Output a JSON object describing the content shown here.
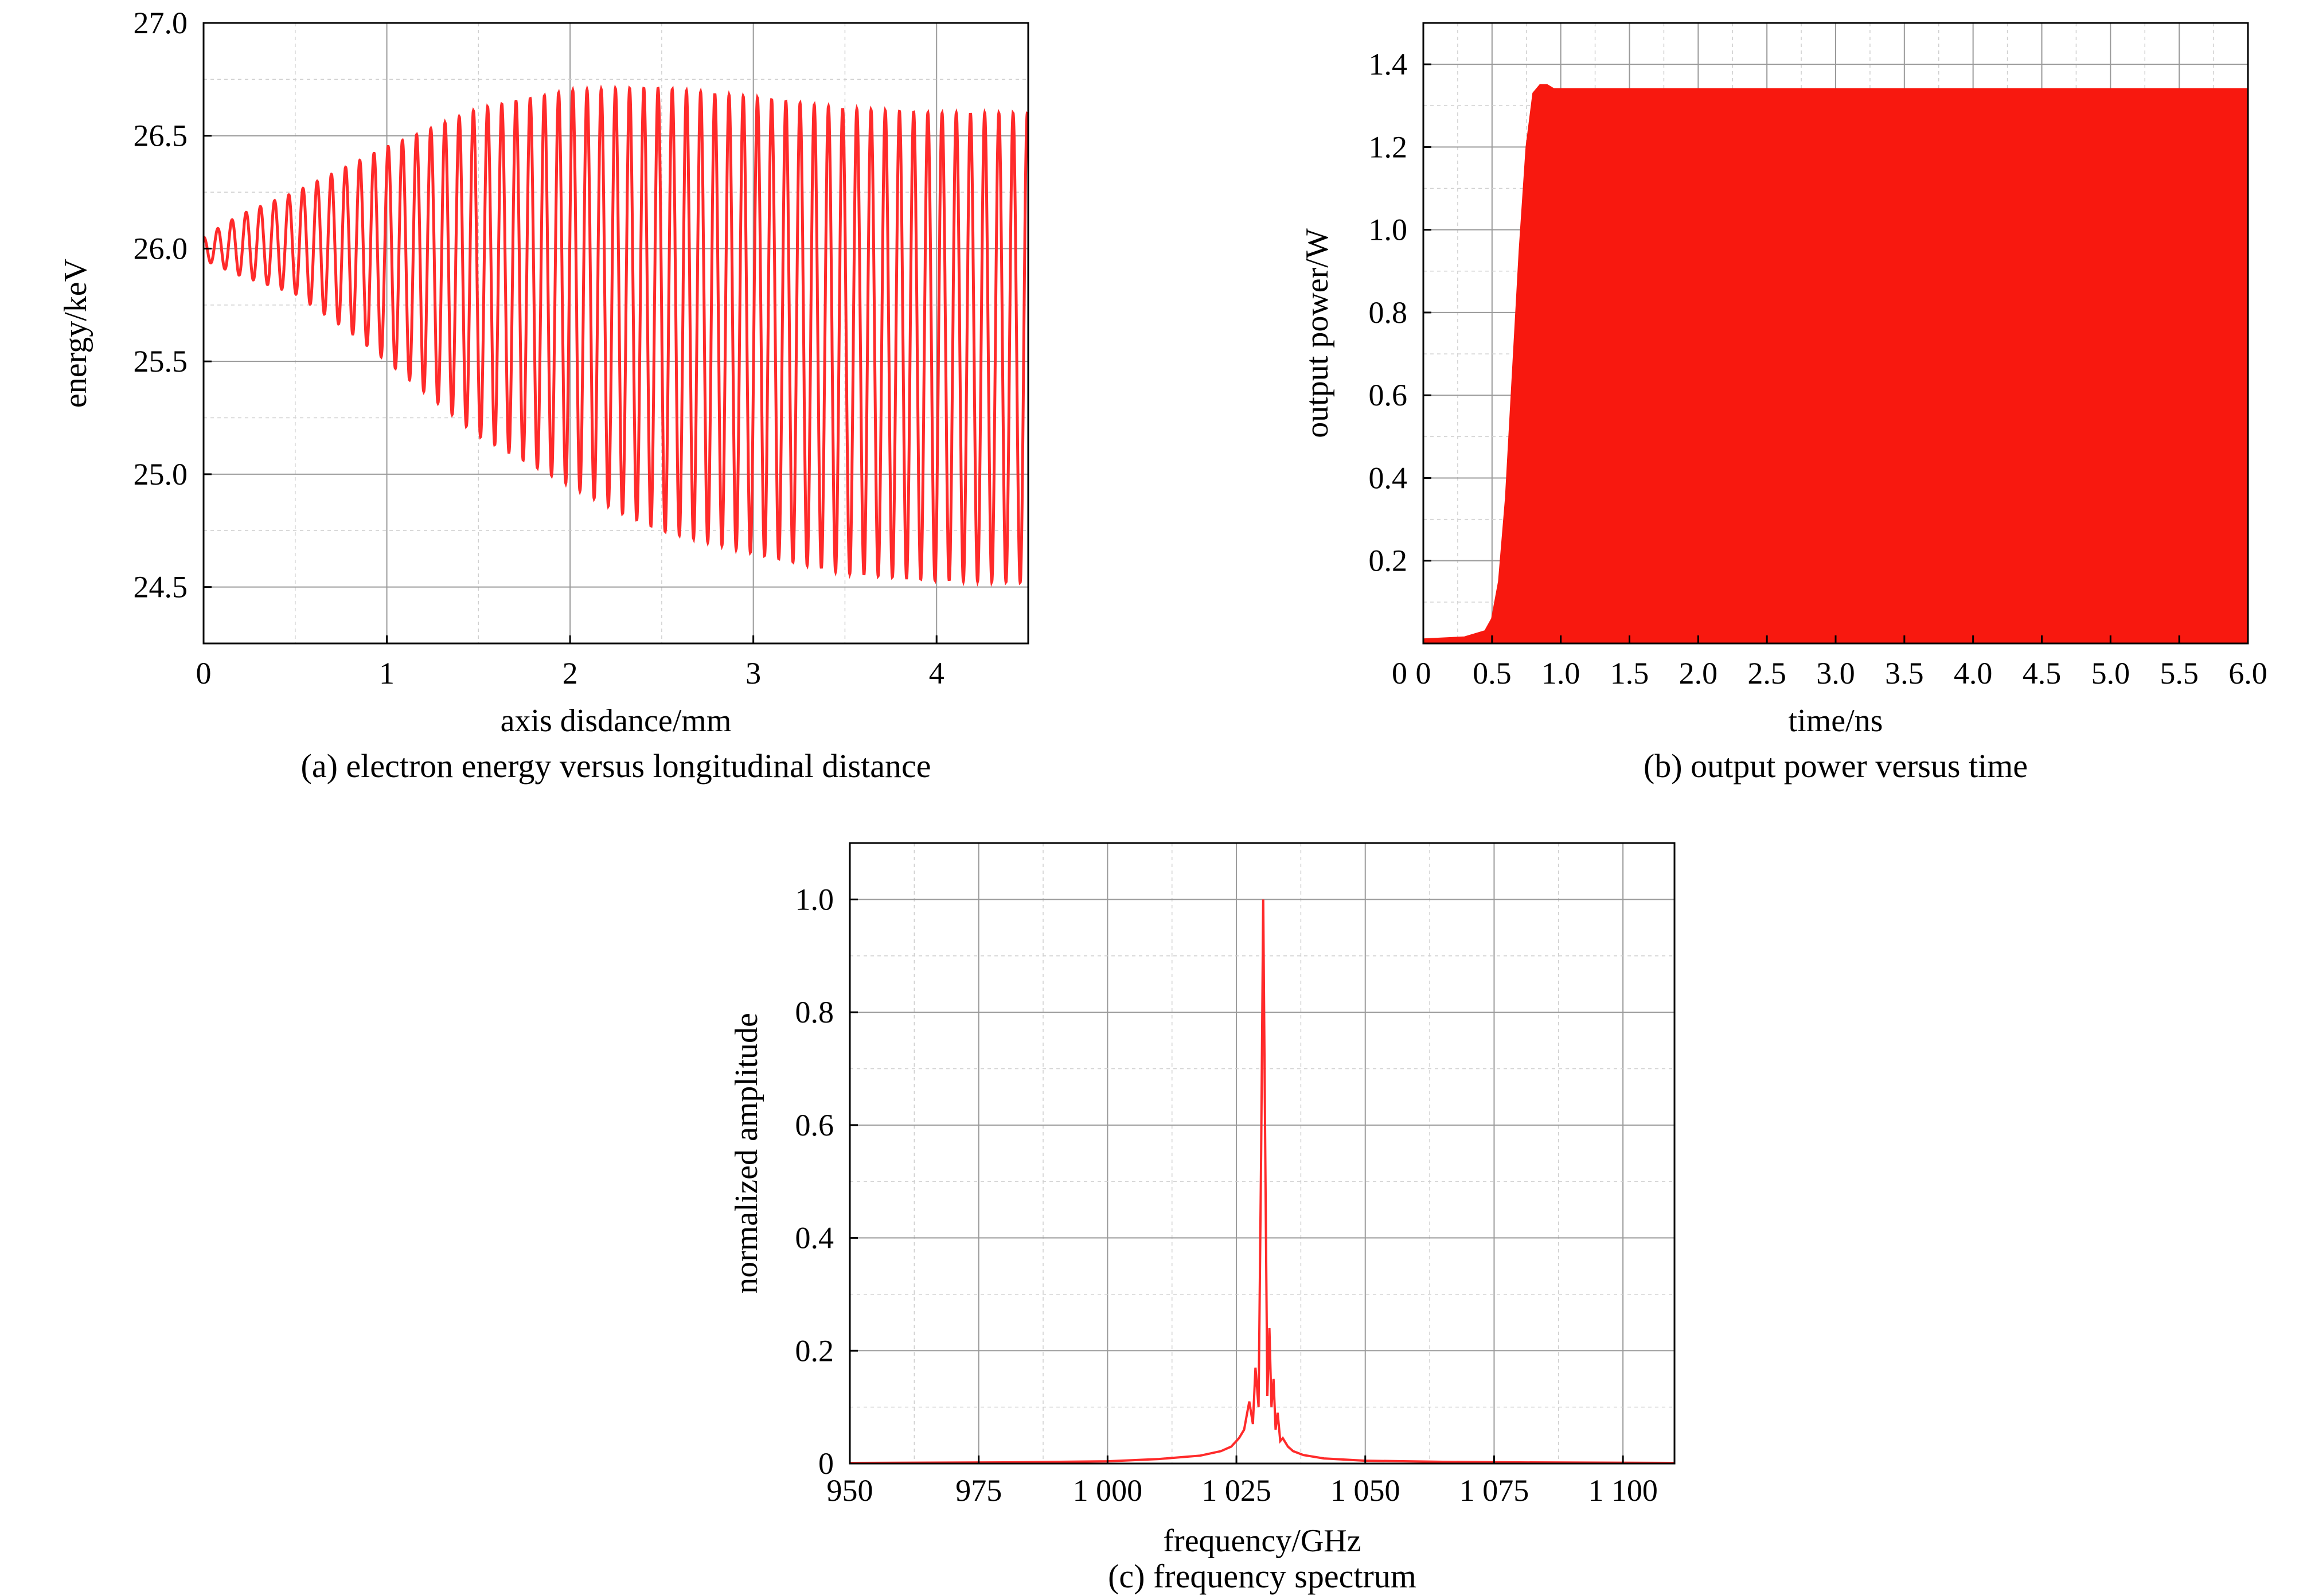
{
  "chart_data": [
    {
      "type": "line",
      "caption": "(a) electron energy versus longitudinal distance",
      "xlabel": "axis disdance/mm",
      "ylabel": "energy/keV",
      "xlim": [
        0,
        4.5
      ],
      "ylim": [
        24.25,
        27.0
      ],
      "xticks": [
        0,
        1,
        2,
        3,
        4
      ],
      "xtick_labels": [
        "0",
        "1",
        "2",
        "3",
        "4"
      ],
      "yticks": [
        24.5,
        25.0,
        25.5,
        26.0,
        26.5,
        27.0
      ],
      "ytick_labels": [
        "24.5",
        "25.0",
        "25.5",
        "26.0",
        "26.5",
        "27.0"
      ],
      "grid": true,
      "color": "#ff2a2a",
      "series": [
        {
          "oscillation_period_mm": 0.0775,
          "envelope": {
            "x": [
              0,
              0.2,
              0.5,
              0.8,
              1.0,
              1.5,
              2.0,
              2.3,
              2.5,
              3.0,
              3.5,
              4.0,
              4.5
            ],
            "upper": [
              26.05,
              26.15,
              26.25,
              26.37,
              26.45,
              26.62,
              26.7,
              26.71,
              26.71,
              26.67,
              26.62,
              26.6,
              26.6
            ],
            "lower": [
              25.95,
              25.88,
              25.8,
              25.63,
              25.5,
              25.17,
              24.95,
              24.82,
              24.75,
              24.65,
              24.56,
              24.53,
              24.52
            ]
          }
        }
      ]
    },
    {
      "type": "area",
      "caption": "(b) output power versus time",
      "xlabel": "time/ns",
      "ylabel": "output power/W",
      "xlim": [
        0,
        6.0
      ],
      "ylim": [
        0,
        1.5
      ],
      "xticks": [
        0,
        0.5,
        1.0,
        1.5,
        2.0,
        2.5,
        3.0,
        3.5,
        4.0,
        4.5,
        5.0,
        5.5,
        6.0
      ],
      "xtick_labels": [
        "0",
        "0.5",
        "1.0",
        "1.5",
        "2.0",
        "2.5",
        "3.0",
        "3.5",
        "4.0",
        "4.5",
        "5.0",
        "5.5",
        "6.0"
      ],
      "yticks": [
        0.2,
        0.4,
        0.6,
        0.8,
        1.0,
        1.2,
        1.4
      ],
      "ytick_labels": [
        "0.2",
        "0.4",
        "0.6",
        "0.8",
        "1.0",
        "1.2",
        "1.4"
      ],
      "grid": true,
      "color": "#f8180f",
      "series": [
        {
          "x": [
            0,
            0.3,
            0.45,
            0.5,
            0.55,
            0.6,
            0.65,
            0.7,
            0.75,
            0.8,
            0.85,
            0.9,
            0.95,
            1.0,
            6.0
          ],
          "y": [
            0.01,
            0.015,
            0.03,
            0.06,
            0.15,
            0.35,
            0.65,
            0.95,
            1.2,
            1.33,
            1.35,
            1.35,
            1.34,
            1.34,
            1.34
          ]
        }
      ]
    },
    {
      "type": "line",
      "caption": "(c) frequency spectrum",
      "xlabel": "frequency/GHz",
      "ylabel": "normalized amplitude",
      "xlim": [
        950,
        1110
      ],
      "ylim": [
        0,
        1.1
      ],
      "xticks": [
        950,
        975,
        1000,
        1025,
        1050,
        1075,
        1100
      ],
      "xtick_labels": [
        "950",
        "975",
        "1 000",
        "1 025",
        "1 050",
        "1 075",
        "1 100"
      ],
      "yticks": [
        0,
        0.2,
        0.4,
        0.6,
        0.8,
        1.0
      ],
      "ytick_labels": [
        "0",
        "0.2",
        "0.4",
        "0.6",
        "0.8",
        "1.0"
      ],
      "grid": true,
      "color": "#ff2a2a",
      "series": [
        {
          "x": [
            950,
            980,
            1000,
            1010,
            1018,
            1022,
            1024,
            1025.5,
            1026.5,
            1027.5,
            1028.2,
            1028.7,
            1029.3,
            1029.8,
            1030.2,
            1030.6,
            1031,
            1031.4,
            1031.8,
            1032.2,
            1032.6,
            1033,
            1033.5,
            1034,
            1035,
            1036,
            1038,
            1042,
            1050,
            1065,
            1080,
            1110
          ],
          "y": [
            0.001,
            0.002,
            0.004,
            0.008,
            0.014,
            0.022,
            0.03,
            0.045,
            0.06,
            0.11,
            0.07,
            0.17,
            0.1,
            0.55,
            1.0,
            0.55,
            0.12,
            0.24,
            0.1,
            0.15,
            0.06,
            0.09,
            0.04,
            0.045,
            0.03,
            0.022,
            0.015,
            0.009,
            0.005,
            0.003,
            0.002,
            0.001
          ]
        }
      ]
    }
  ]
}
